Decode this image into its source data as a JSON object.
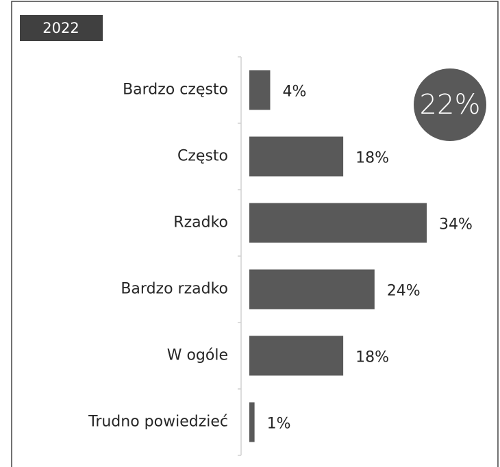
{
  "badge": "2022",
  "chart_data": {
    "type": "bar",
    "orientation": "horizontal",
    "annotation": "22%",
    "categories": [
      "Bardzo często",
      "Często",
      "Rzadko",
      "Bardzo rzadko",
      "W ogóle",
      "Trudno powiedzieć"
    ],
    "values": [
      4,
      18,
      34,
      24,
      18,
      1
    ],
    "value_labels": [
      "4%",
      "18%",
      "34%",
      "24%",
      "18%",
      "1%"
    ],
    "color": "#595959"
  }
}
